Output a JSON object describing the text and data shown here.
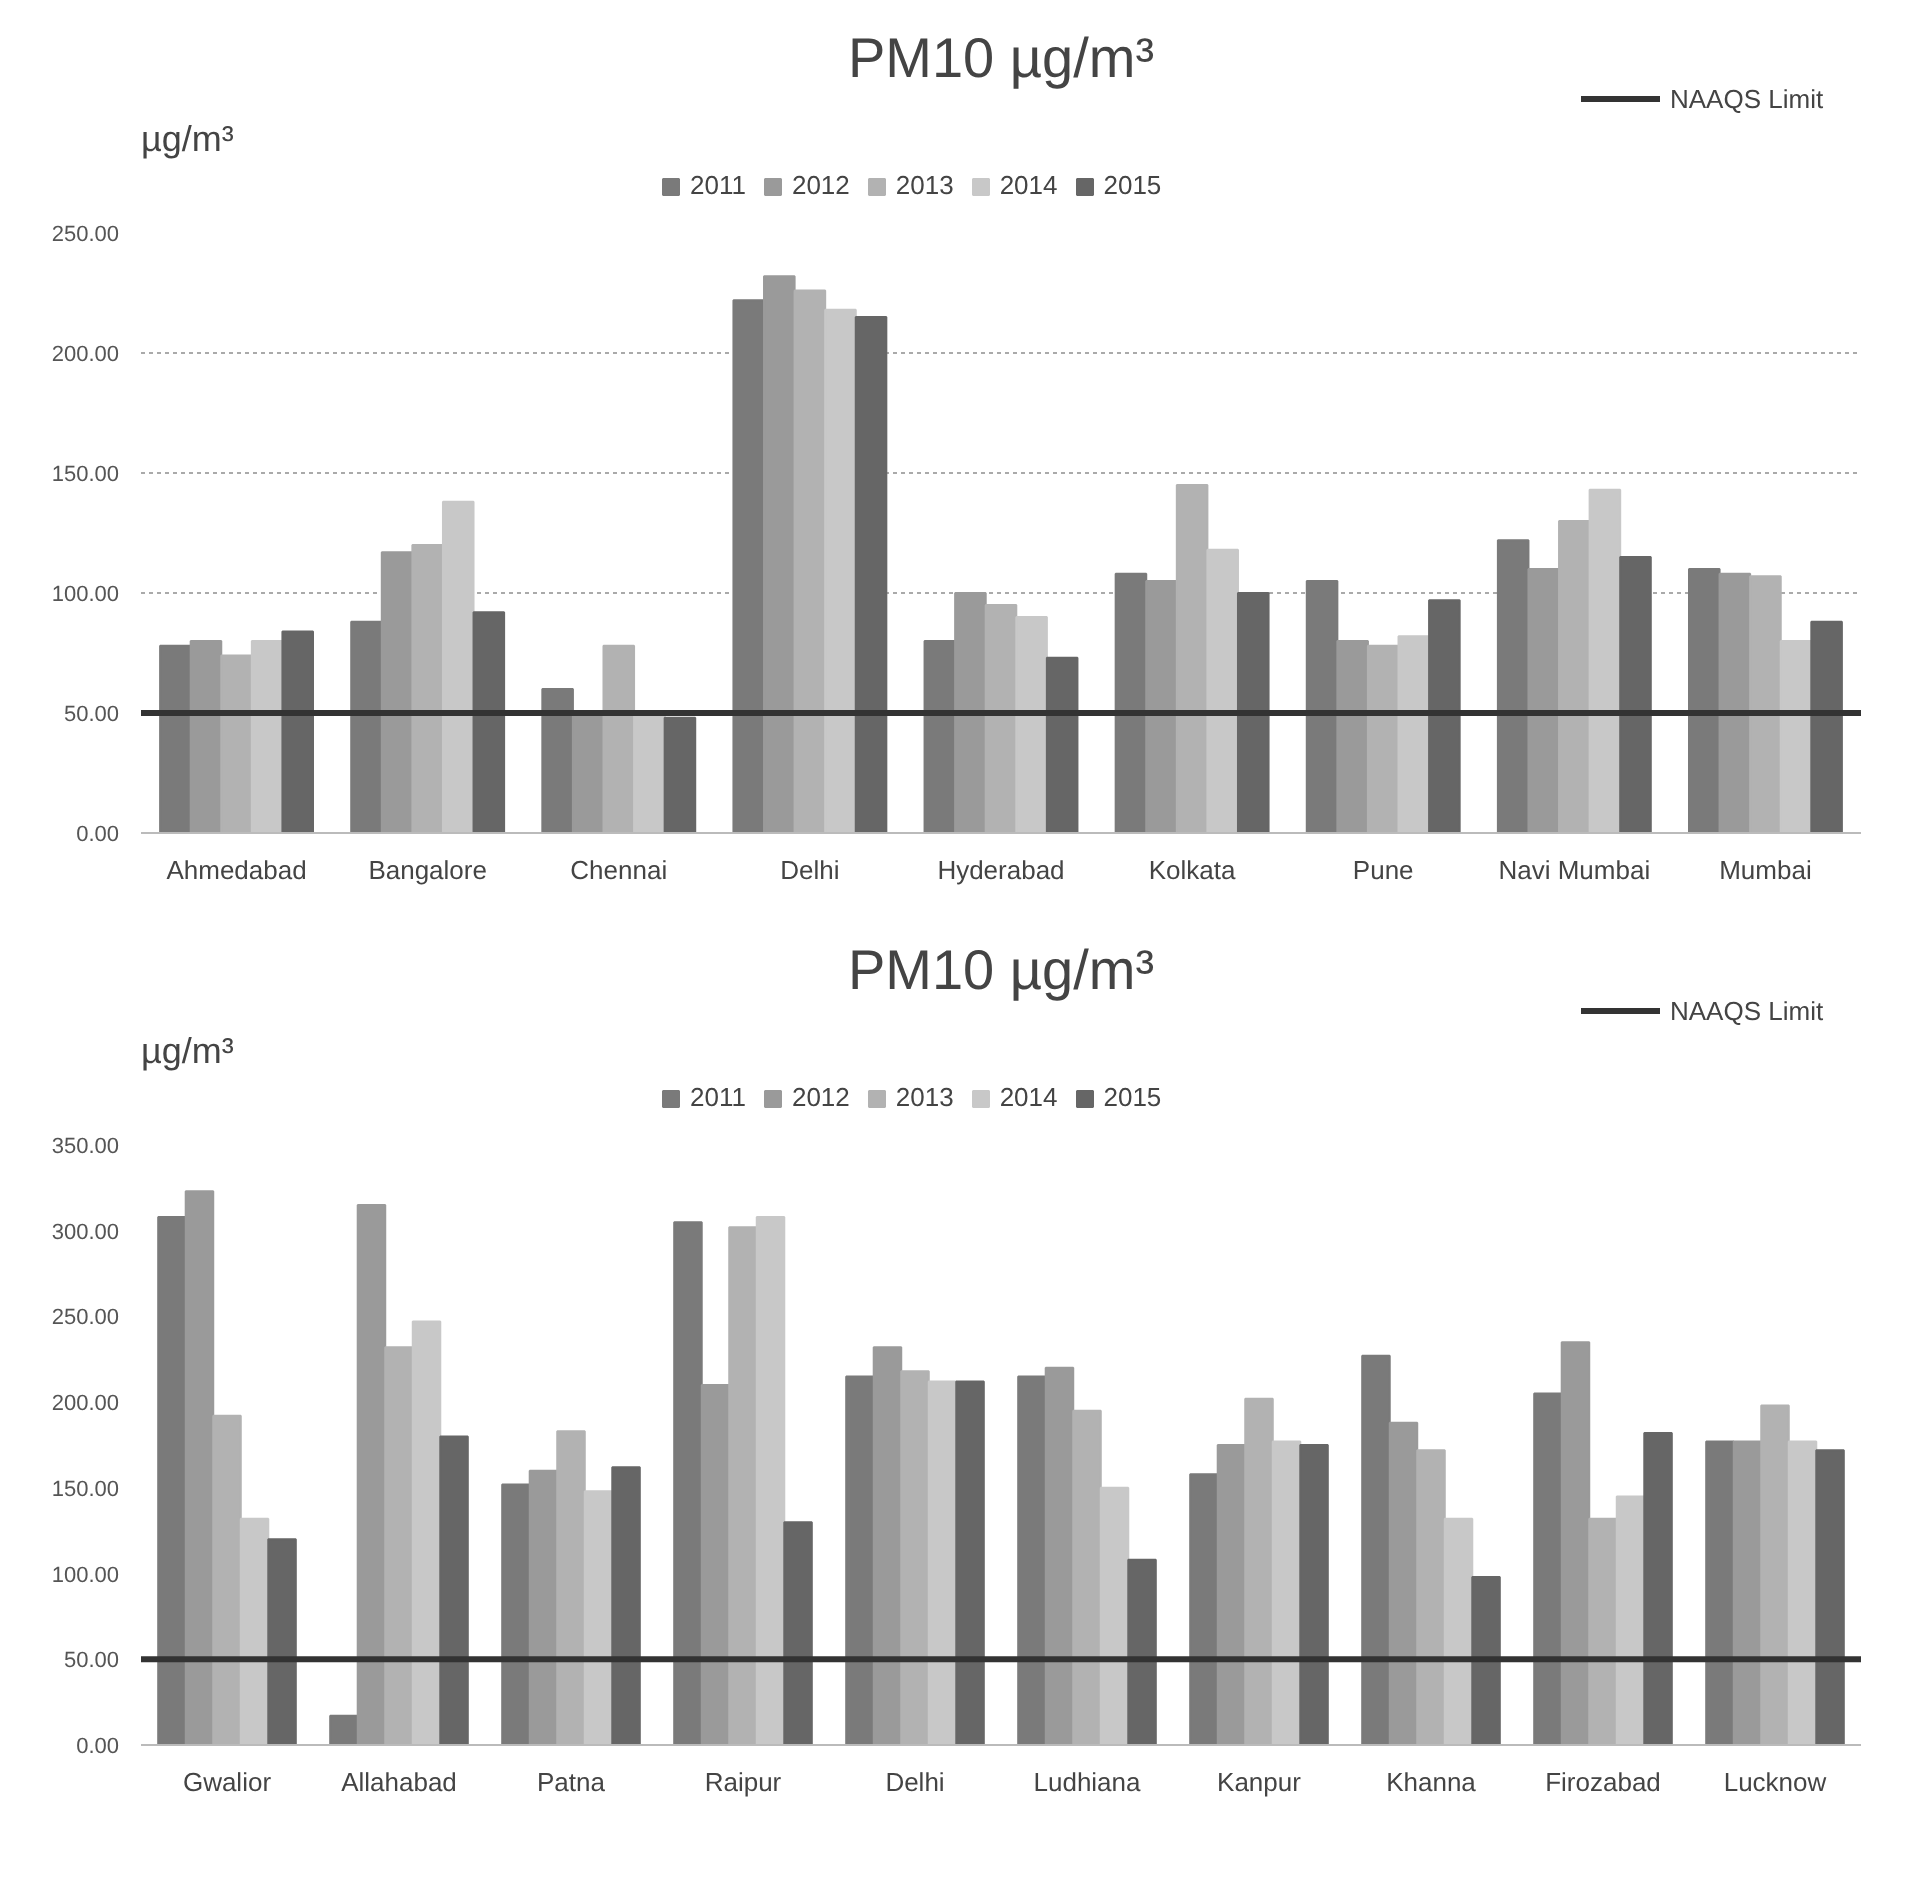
{
  "chart_data": [
    {
      "type": "bar",
      "title": "PM10 µg/m³",
      "ylabel": "µg/m³",
      "categories": [
        "Ahmedabad",
        "Bangalore",
        "Chennai",
        "Delhi",
        "Hyderabad",
        "Kolkata",
        "Pune",
        "Navi Mumbai",
        "Mumbai"
      ],
      "series": [
        {
          "name": "2011",
          "color": "#7a7a7a",
          "values": [
            78,
            88,
            60,
            222,
            80,
            108,
            105,
            122,
            110
          ]
        },
        {
          "name": "2012",
          "color": "#9a9a9a",
          "values": [
            80,
            117,
            50,
            232,
            100,
            105,
            80,
            110,
            108
          ]
        },
        {
          "name": "2013",
          "color": "#b2b2b2",
          "values": [
            74,
            120,
            78,
            226,
            95,
            145,
            78,
            130,
            107
          ]
        },
        {
          "name": "2014",
          "color": "#c8c8c8",
          "values": [
            80,
            138,
            50,
            218,
            90,
            118,
            82,
            143,
            80
          ]
        },
        {
          "name": "2015",
          "color": "#666666",
          "values": [
            84,
            92,
            48,
            215,
            73,
            100,
            97,
            115,
            88
          ]
        }
      ],
      "ylim": [
        0,
        250
      ],
      "yticks": [
        {
          "value": 0,
          "label": "0.00"
        },
        {
          "value": 50,
          "label": "50.00"
        },
        {
          "value": 100,
          "label": "100.00"
        },
        {
          "value": 150,
          "label": "150.00"
        },
        {
          "value": 200,
          "label": "200.00"
        },
        {
          "value": 250,
          "label": "250.00"
        }
      ],
      "ref_lines": [
        {
          "axis": "y",
          "value": 50,
          "label": "NAAQS Limit",
          "color": "#333333"
        }
      ],
      "grid": "y",
      "legend": "top"
    },
    {
      "type": "bar",
      "title": "PM10 µg/m³",
      "ylabel": "µg/m³",
      "categories": [
        "Gwalior",
        "Allahabad",
        "Patna",
        "Raipur",
        "Delhi",
        "Ludhiana",
        "Kanpur",
        "Khanna",
        "Firozabad",
        "Lucknow"
      ],
      "series": [
        {
          "name": "2011",
          "color": "#7a7a7a",
          "values": [
            308,
            17,
            152,
            305,
            215,
            215,
            158,
            227,
            205,
            177
          ]
        },
        {
          "name": "2012",
          "color": "#9a9a9a",
          "values": [
            323,
            315,
            160,
            210,
            232,
            220,
            175,
            188,
            235,
            177
          ]
        },
        {
          "name": "2013",
          "color": "#b2b2b2",
          "values": [
            192,
            232,
            183,
            302,
            218,
            195,
            202,
            172,
            132,
            198
          ]
        },
        {
          "name": "2014",
          "color": "#c8c8c8",
          "values": [
            132,
            247,
            148,
            308,
            212,
            150,
            177,
            132,
            145,
            177
          ]
        },
        {
          "name": "2015",
          "color": "#666666",
          "values": [
            120,
            180,
            162,
            130,
            212,
            108,
            175,
            98,
            182,
            172
          ]
        }
      ],
      "ylim": [
        0,
        350
      ],
      "yticks": [
        {
          "value": 0,
          "label": "0.00"
        },
        {
          "value": 50,
          "label": "50.00"
        },
        {
          "value": 100,
          "label": "100.00"
        },
        {
          "value": 150,
          "label": "150.00"
        },
        {
          "value": 200,
          "label": "200.00"
        },
        {
          "value": 250,
          "label": "250.00"
        },
        {
          "value": 300,
          "label": "300.00"
        },
        {
          "value": 350,
          "label": "350.00"
        }
      ],
      "ref_lines": [
        {
          "axis": "y",
          "value": 50,
          "label": "NAAQS Limit",
          "color": "#333333"
        }
      ],
      "legend": "top"
    }
  ]
}
